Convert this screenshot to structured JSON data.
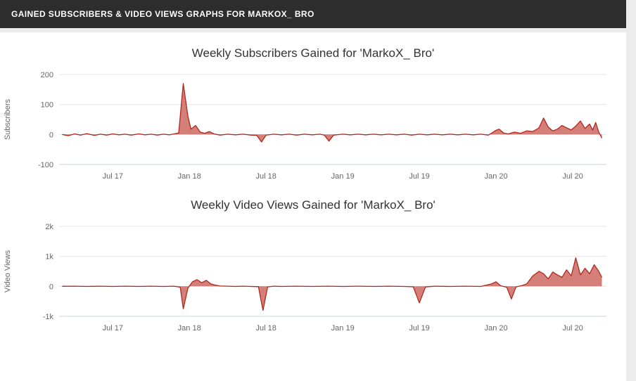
{
  "header": {
    "title": "GAINED SUBSCRIBERS & VIDEO VIEWS GRAPHS FOR MARKOX_ BRO"
  },
  "colors": {
    "header_bg": "#2d2d2d",
    "page_bg": "#ececec",
    "panel_bg": "#ffffff",
    "grid": "#e6e6e6",
    "axis_line": "#ccd6eb",
    "series_line": "#b1281e",
    "series_fill": "rgba(187,49,38,0.62)"
  },
  "chart_data": [
    {
      "type": "area",
      "title": "Weekly Subscribers Gained for 'MarkoX_ Bro'",
      "xlabel": "",
      "ylabel": "Subscribers",
      "xlim": [
        2017.15,
        2020.72
      ],
      "ylim": [
        -100,
        200
      ],
      "grid": true,
      "legend": "none",
      "x_ticks": [
        {
          "t": 2017.5,
          "label": "Jul 17"
        },
        {
          "t": 2018.0,
          "label": "Jan 18"
        },
        {
          "t": 2018.5,
          "label": "Jul 18"
        },
        {
          "t": 2019.0,
          "label": "Jan 19"
        },
        {
          "t": 2019.5,
          "label": "Jul 19"
        },
        {
          "t": 2020.0,
          "label": "Jan 20"
        },
        {
          "t": 2020.5,
          "label": "Jul 20"
        }
      ],
      "y_ticks": [
        {
          "v": -100,
          "label": "-100"
        },
        {
          "v": 0,
          "label": "0"
        },
        {
          "v": 100,
          "label": "100"
        },
        {
          "v": 200,
          "label": "200"
        }
      ],
      "series": [
        {
          "name": "Subscribers",
          "color": "#b1281e",
          "fill": "rgba(187,49,38,0.62)",
          "points": [
            [
              2017.17,
              0
            ],
            [
              2017.21,
              -4
            ],
            [
              2017.25,
              2
            ],
            [
              2017.29,
              -2
            ],
            [
              2017.33,
              3
            ],
            [
              2017.38,
              -3
            ],
            [
              2017.42,
              1
            ],
            [
              2017.46,
              -2
            ],
            [
              2017.5,
              2
            ],
            [
              2017.54,
              -1
            ],
            [
              2017.58,
              1
            ],
            [
              2017.62,
              -2
            ],
            [
              2017.67,
              2
            ],
            [
              2017.71,
              -1
            ],
            [
              2017.75,
              1
            ],
            [
              2017.79,
              -2
            ],
            [
              2017.83,
              1
            ],
            [
              2017.87,
              -1
            ],
            [
              2017.9,
              2
            ],
            [
              2017.93,
              5
            ],
            [
              2017.96,
              170
            ],
            [
              2017.99,
              60
            ],
            [
              2018.01,
              18
            ],
            [
              2018.04,
              30
            ],
            [
              2018.07,
              8
            ],
            [
              2018.1,
              4
            ],
            [
              2018.13,
              10
            ],
            [
              2018.16,
              2
            ],
            [
              2018.2,
              -2
            ],
            [
              2018.25,
              1
            ],
            [
              2018.3,
              -1
            ],
            [
              2018.35,
              1
            ],
            [
              2018.4,
              -2
            ],
            [
              2018.44,
              -3
            ],
            [
              2018.47,
              -25
            ],
            [
              2018.5,
              -2
            ],
            [
              2018.55,
              1
            ],
            [
              2018.6,
              -1
            ],
            [
              2018.65,
              1
            ],
            [
              2018.7,
              -2
            ],
            [
              2018.75,
              1
            ],
            [
              2018.8,
              -1
            ],
            [
              2018.85,
              1
            ],
            [
              2018.88,
              -2
            ],
            [
              2018.91,
              -22
            ],
            [
              2018.94,
              -2
            ],
            [
              2019.0,
              1
            ],
            [
              2019.05,
              -1
            ],
            [
              2019.1,
              1
            ],
            [
              2019.15,
              -1
            ],
            [
              2019.2,
              1
            ],
            [
              2019.25,
              -1
            ],
            [
              2019.3,
              1
            ],
            [
              2019.35,
              -1
            ],
            [
              2019.4,
              1
            ],
            [
              2019.45,
              -2
            ],
            [
              2019.5,
              1
            ],
            [
              2019.55,
              -1
            ],
            [
              2019.6,
              1
            ],
            [
              2019.65,
              -1
            ],
            [
              2019.7,
              1
            ],
            [
              2019.75,
              -1
            ],
            [
              2019.8,
              1
            ],
            [
              2019.85,
              -1
            ],
            [
              2019.9,
              1
            ],
            [
              2019.95,
              -2
            ],
            [
              2020.0,
              14
            ],
            [
              2020.02,
              18
            ],
            [
              2020.05,
              5
            ],
            [
              2020.08,
              2
            ],
            [
              2020.12,
              8
            ],
            [
              2020.16,
              4
            ],
            [
              2020.2,
              12
            ],
            [
              2020.24,
              10
            ],
            [
              2020.28,
              22
            ],
            [
              2020.31,
              55
            ],
            [
              2020.34,
              25
            ],
            [
              2020.37,
              12
            ],
            [
              2020.4,
              18
            ],
            [
              2020.43,
              30
            ],
            [
              2020.46,
              22
            ],
            [
              2020.49,
              15
            ],
            [
              2020.52,
              28
            ],
            [
              2020.55,
              45
            ],
            [
              2020.58,
              20
            ],
            [
              2020.61,
              35
            ],
            [
              2020.63,
              15
            ],
            [
              2020.65,
              40
            ],
            [
              2020.67,
              8
            ],
            [
              2020.69,
              -12
            ]
          ]
        }
      ]
    },
    {
      "type": "area",
      "title": "Weekly Video Views Gained for 'MarkoX_ Bro'",
      "xlabel": "",
      "ylabel": "Video Views",
      "xlim": [
        2017.15,
        2020.72
      ],
      "ylim": [
        -1000,
        2000
      ],
      "grid": true,
      "legend": "none",
      "x_ticks": [
        {
          "t": 2017.5,
          "label": "Jul 17"
        },
        {
          "t": 2018.0,
          "label": "Jan 18"
        },
        {
          "t": 2018.5,
          "label": "Jul 18"
        },
        {
          "t": 2019.0,
          "label": "Jan 19"
        },
        {
          "t": 2019.5,
          "label": "Jul 19"
        },
        {
          "t": 2020.0,
          "label": "Jan 20"
        },
        {
          "t": 2020.5,
          "label": "Jul 20"
        }
      ],
      "y_ticks": [
        {
          "v": -1000,
          "label": "-1k"
        },
        {
          "v": 0,
          "label": "0"
        },
        {
          "v": 1000,
          "label": "1k"
        },
        {
          "v": 2000,
          "label": "2k"
        }
      ],
      "series": [
        {
          "name": "Video Views",
          "color": "#b1281e",
          "fill": "rgba(187,49,38,0.62)",
          "points": [
            [
              2017.17,
              0
            ],
            [
              2017.25,
              5
            ],
            [
              2017.33,
              -5
            ],
            [
              2017.42,
              5
            ],
            [
              2017.5,
              -5
            ],
            [
              2017.58,
              5
            ],
            [
              2017.67,
              -5
            ],
            [
              2017.75,
              5
            ],
            [
              2017.83,
              -5
            ],
            [
              2017.9,
              5
            ],
            [
              2017.94,
              -30
            ],
            [
              2017.96,
              -750
            ],
            [
              2017.99,
              -60
            ],
            [
              2018.02,
              150
            ],
            [
              2018.05,
              220
            ],
            [
              2018.08,
              120
            ],
            [
              2018.11,
              200
            ],
            [
              2018.14,
              80
            ],
            [
              2018.17,
              40
            ],
            [
              2018.2,
              10
            ],
            [
              2018.25,
              5
            ],
            [
              2018.3,
              -5
            ],
            [
              2018.35,
              5
            ],
            [
              2018.4,
              -5
            ],
            [
              2018.45,
              -10
            ],
            [
              2018.48,
              -800
            ],
            [
              2018.51,
              -20
            ],
            [
              2018.55,
              5
            ],
            [
              2018.6,
              -5
            ],
            [
              2018.7,
              5
            ],
            [
              2018.8,
              -5
            ],
            [
              2018.9,
              5
            ],
            [
              2019.0,
              -5
            ],
            [
              2019.1,
              5
            ],
            [
              2019.2,
              -5
            ],
            [
              2019.3,
              5
            ],
            [
              2019.4,
              -5
            ],
            [
              2019.46,
              -15
            ],
            [
              2019.5,
              -550
            ],
            [
              2019.54,
              -20
            ],
            [
              2019.6,
              5
            ],
            [
              2019.7,
              -5
            ],
            [
              2019.8,
              5
            ],
            [
              2019.9,
              -5
            ],
            [
              2019.97,
              80
            ],
            [
              2020.0,
              150
            ],
            [
              2020.03,
              20
            ],
            [
              2020.07,
              -30
            ],
            [
              2020.1,
              -420
            ],
            [
              2020.13,
              -20
            ],
            [
              2020.17,
              30
            ],
            [
              2020.2,
              80
            ],
            [
              2020.24,
              350
            ],
            [
              2020.28,
              500
            ],
            [
              2020.31,
              420
            ],
            [
              2020.34,
              250
            ],
            [
              2020.37,
              480
            ],
            [
              2020.4,
              380
            ],
            [
              2020.43,
              300
            ],
            [
              2020.46,
              550
            ],
            [
              2020.49,
              350
            ],
            [
              2020.52,
              950
            ],
            [
              2020.55,
              380
            ],
            [
              2020.58,
              600
            ],
            [
              2020.61,
              420
            ],
            [
              2020.64,
              720
            ],
            [
              2020.67,
              500
            ],
            [
              2020.69,
              300
            ]
          ]
        }
      ]
    }
  ]
}
